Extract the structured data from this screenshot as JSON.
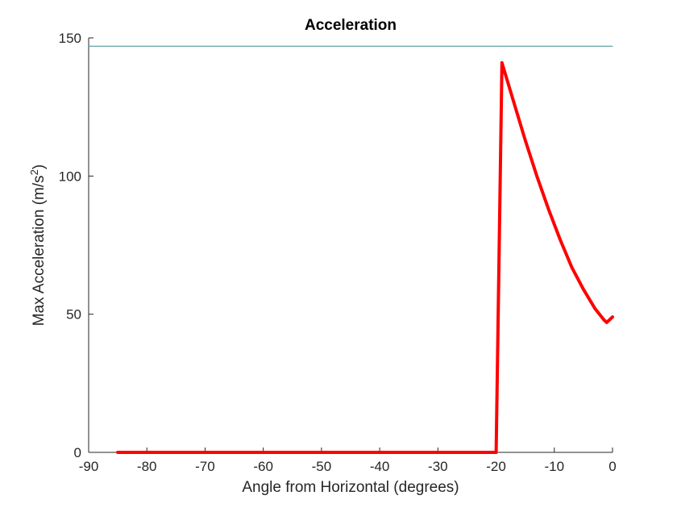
{
  "chart_data": {
    "type": "line",
    "title": "Acceleration",
    "xlabel": "Angle from Horizontal (degrees)",
    "ylabel_main": "Max Acceleration (m/s",
    "ylabel_sup": "2",
    "ylabel_tail": ")",
    "xlim": [
      -90,
      0
    ],
    "ylim": [
      0,
      150
    ],
    "xticks": [
      -90,
      -80,
      -70,
      -60,
      -50,
      -40,
      -30,
      -20,
      -10,
      0
    ],
    "xtick_labels": [
      "-90",
      "-80",
      "-70",
      "-60",
      "-50",
      "-40",
      "-30",
      "-20",
      "-10",
      "0"
    ],
    "yticks": [
      0,
      50,
      100,
      150
    ],
    "ytick_labels": [
      "0",
      "50",
      "100",
      "150"
    ],
    "grid": false,
    "series": [
      {
        "color": "#ff0000",
        "x": [
          -85,
          -80,
          -70,
          -60,
          -50,
          -40,
          -30,
          -21,
          -20,
          -19,
          -17,
          -15,
          -13,
          -11,
          -9,
          -7,
          -5,
          -3,
          -1.5,
          -1,
          -0.5,
          0
        ],
        "y": [
          0,
          0,
          0,
          0,
          0,
          0,
          0,
          0,
          0,
          141,
          127,
          113,
          100,
          88,
          77,
          67,
          59,
          52,
          48,
          47,
          48,
          49
        ]
      },
      {
        "color": "#3d8a8a",
        "x": [
          -90,
          0
        ],
        "y": [
          147,
          147
        ]
      }
    ]
  }
}
